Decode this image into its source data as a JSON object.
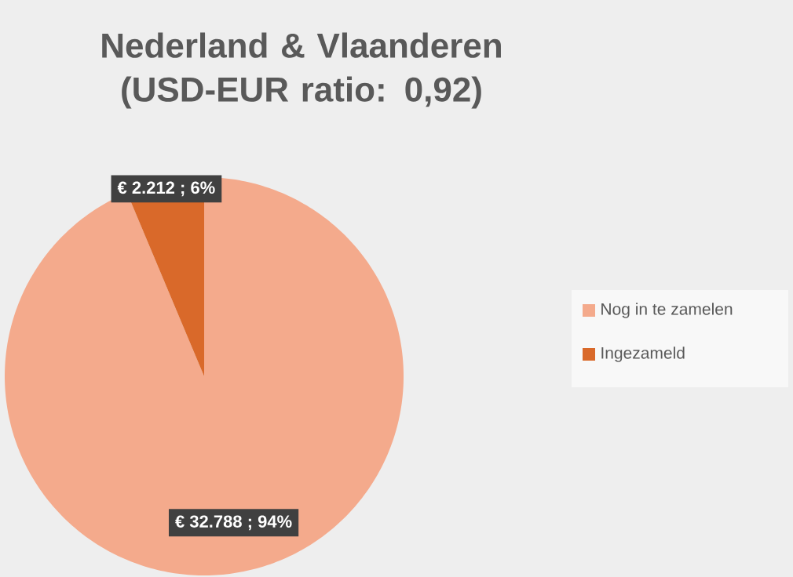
{
  "chart_data": {
    "type": "pie",
    "title": "Nederland & Vlaanderen (USD-EUR ratio: 0,92)",
    "categories": [
      "Nog in te zamelen",
      "Ingezameld"
    ],
    "values": [
      32788,
      2212
    ],
    "colors": [
      "#f4aa8c",
      "#d9692a"
    ],
    "value_labels": [
      "€ 32.788 ; 94%",
      "€ 2.212 ; 6%"
    ],
    "legend": "right"
  }
}
